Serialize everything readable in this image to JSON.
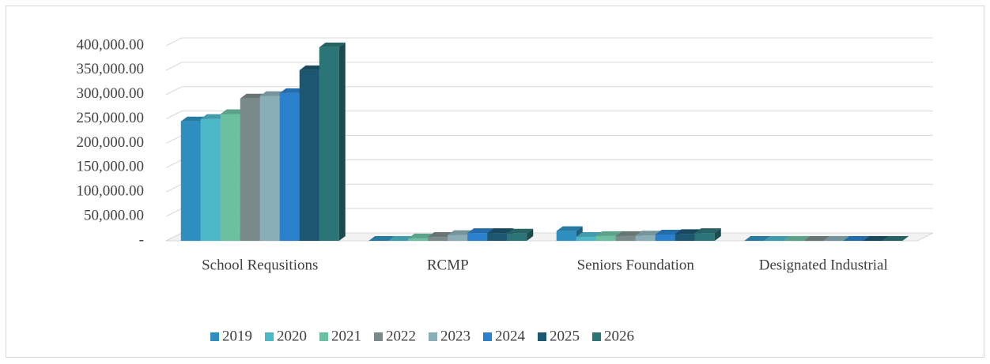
{
  "chart_data": {
    "type": "bar3d",
    "categories": [
      "School Requsitions",
      "RCMP",
      "Seniors Foundation",
      "Designated Industrial"
    ],
    "series": [
      {
        "name": "2019",
        "color": "#2e8fbf",
        "values": [
          245000,
          0,
          20000,
          0
        ]
      },
      {
        "name": "2020",
        "color": "#4bb8c8",
        "values": [
          250000,
          0,
          8000,
          0
        ]
      },
      {
        "name": "2021",
        "color": "#6cbfa0",
        "values": [
          260000,
          5000,
          10000,
          0
        ]
      },
      {
        "name": "2022",
        "color": "#7a8a8a",
        "values": [
          292000,
          8000,
          10000,
          0
        ]
      },
      {
        "name": "2023",
        "color": "#8aaeb8",
        "values": [
          297000,
          12000,
          11000,
          0
        ]
      },
      {
        "name": "2024",
        "color": "#2a80cc",
        "values": [
          303000,
          16000,
          13000,
          0
        ]
      },
      {
        "name": "2025",
        "color": "#1d5670",
        "values": [
          350000,
          16000,
          14000,
          0
        ]
      },
      {
        "name": "2026",
        "color": "#2b7477",
        "values": [
          397000,
          15000,
          16000,
          0
        ]
      }
    ],
    "ylim": [
      0,
      400000
    ],
    "yticks": [
      {
        "value": 0,
        "label": "-"
      },
      {
        "value": 50000,
        "label": "50,000.00"
      },
      {
        "value": 100000,
        "label": "100,000.00"
      },
      {
        "value": 150000,
        "label": "150,000.00"
      },
      {
        "value": 200000,
        "label": "200,000.00"
      },
      {
        "value": 250000,
        "label": "250,000.00"
      },
      {
        "value": 300000,
        "label": "300,000.00"
      },
      {
        "value": 350000,
        "label": "350,000.00"
      },
      {
        "value": 400000,
        "label": "400,000.00"
      }
    ],
    "grid": true,
    "legend": "bottom"
  }
}
